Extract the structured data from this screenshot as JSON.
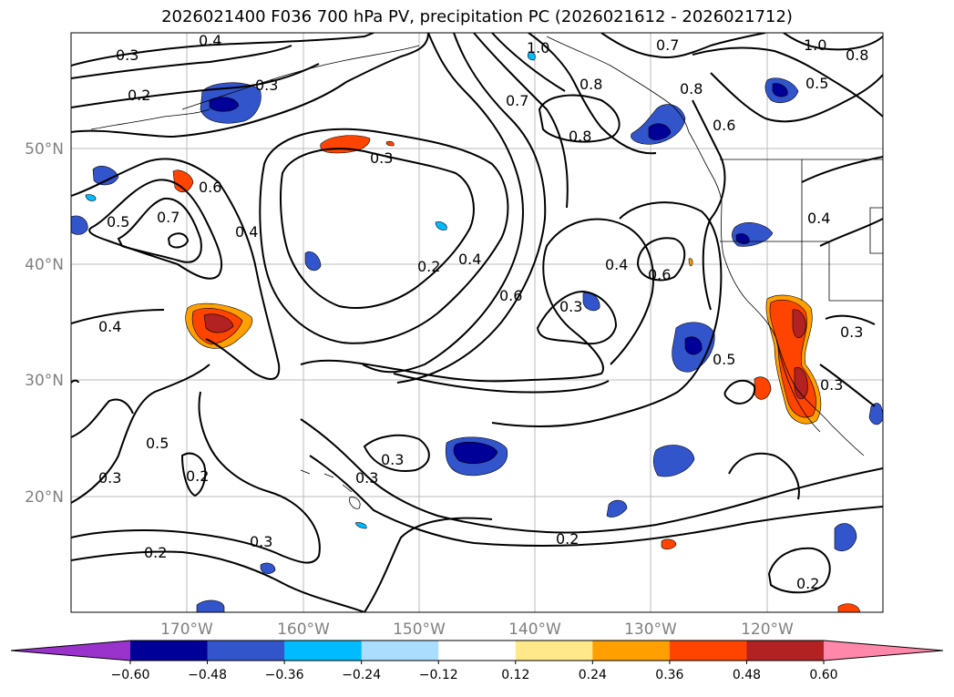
{
  "title": "2026021400 F036 700 hPa PV, precipitation PC (2026021612 - 2026021712)",
  "lat_labels": [
    "50°N",
    "40°N",
    "30°N",
    "20°N"
  ],
  "lon_labels": [
    "170°W",
    "160°W",
    "150°W",
    "140°W",
    "130°W",
    "120°W"
  ],
  "contour_labels": {
    "a": "0.4",
    "b": "0.3",
    "c": "0.2",
    "d": "0.3",
    "e": "1.0",
    "f": "0.7",
    "g": "1.0",
    "h": "0.8",
    "i": "0.8",
    "j": "0.8",
    "k": "0.5",
    "l": "0.7",
    "m": "0.8",
    "n": "0.6",
    "o": "0.3",
    "p": "0.6",
    "q": "0.5",
    "r": "0.7",
    "s": "0.4",
    "t": "0.4",
    "u": "0.2",
    "v": "0.4",
    "w": "0.6",
    "x": "0.4",
    "y": "0.3",
    "z": "0.6",
    "aa": "0.3",
    "ab": "0.5",
    "ac": "0.4",
    "ad": "0.5",
    "ae": "0.3",
    "af": "0.2",
    "ag": "0.3",
    "ah": "0.3",
    "ai": "0.2",
    "aj": "0.3",
    "ak": "0.2",
    "al": "0.2",
    "am": "0.3"
  },
  "colorbar": {
    "ticks": [
      "−0.60",
      "−0.48",
      "−0.36",
      "−0.24",
      "−0.12",
      "0.12",
      "0.24",
      "0.36",
      "0.48",
      "0.60"
    ],
    "colors": [
      "#9933cc",
      "#000099",
      "#3355cc",
      "#00bbff",
      "#aaddff",
      "#ffffff",
      "#ffe88a",
      "#ffa000",
      "#ff4400",
      "#b22222",
      "#ff88aa"
    ]
  }
}
